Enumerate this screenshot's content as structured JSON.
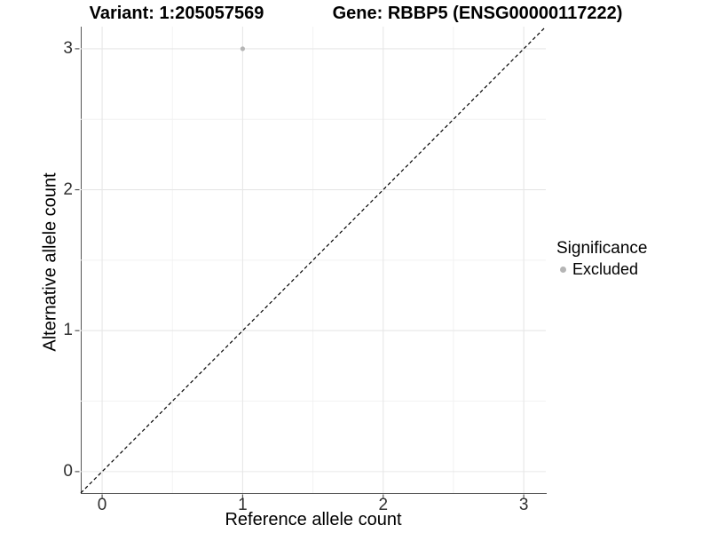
{
  "chart_data": {
    "type": "scatter",
    "title_left": "Variant: 1:205057569",
    "title_right": "Gene: RBBP5 (ENSG00000117222)",
    "xlabel": "Reference allele count",
    "ylabel": "Alternative allele count",
    "xlim": [
      -0.152,
      3.157
    ],
    "ylim": [
      -0.152,
      3.157
    ],
    "x_ticks": [
      0,
      1,
      2,
      3
    ],
    "y_ticks": [
      0,
      1,
      2,
      3
    ],
    "x_minor_ticks": [
      0.5,
      1.5,
      2.5
    ],
    "y_minor_ticks": [
      0.5,
      1.5,
      2.5
    ],
    "grid": "major+minor",
    "reference_line": {
      "type": "abline",
      "slope": 1,
      "intercept": 0,
      "style": "dashed"
    },
    "series": [
      {
        "name": "Excluded",
        "points": [
          {
            "x": 1,
            "y": 3
          }
        ]
      }
    ],
    "legend": {
      "title": "Significance",
      "position": "right",
      "items": [
        {
          "label": "Excluded",
          "color": "#b5b5b5"
        }
      ]
    },
    "colors": {
      "point_excluded": "#b5b5b5",
      "grid_major": "#e7e7e7",
      "grid_minor": "#f2f2f2",
      "axis_line": "#555555",
      "tick_label": "#303030",
      "title_text": "#000000",
      "reference_line": "#000000"
    }
  }
}
